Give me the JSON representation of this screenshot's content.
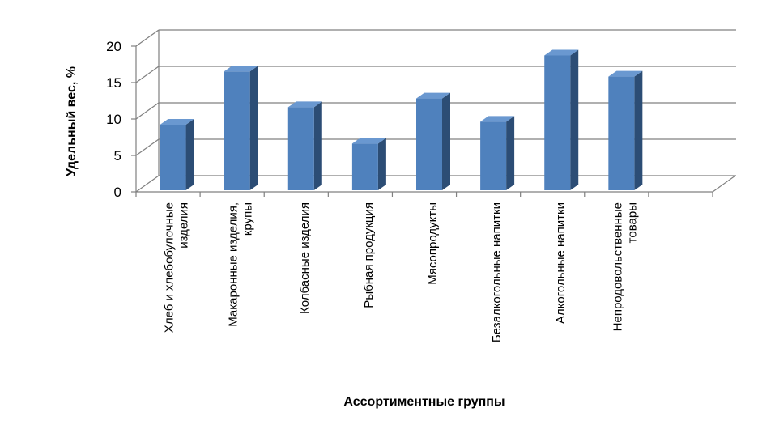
{
  "chart_data": {
    "type": "bar",
    "categories": [
      [
        "Хлеб и хлебобулочные",
        "изделия"
      ],
      [
        "Макаронные изделия,",
        "крупы"
      ],
      [
        "Колбасные изделия"
      ],
      [
        "Рыбная продукция"
      ],
      [
        "Мясопродукты"
      ],
      [
        "Безалкогольные напитки"
      ],
      [
        "Алкогольные напитки"
      ],
      [
        "Непродовольственные",
        "товары"
      ]
    ],
    "values": [
      9,
      16.3,
      11.4,
      6.4,
      12.6,
      9.4,
      18.5,
      15.6
    ],
    "xlabel": "Ассортиментные группы",
    "ylabel": "Удельный вес, %",
    "ylim": [
      0,
      20
    ],
    "yticks": [
      "0",
      "5",
      "10",
      "15",
      "20"
    ],
    "grid": true,
    "style": "3d-column",
    "colors": {
      "front": "#4f81bd",
      "side": "#2c4d75",
      "top": "#6a98d0",
      "grid": "#808080"
    }
  }
}
